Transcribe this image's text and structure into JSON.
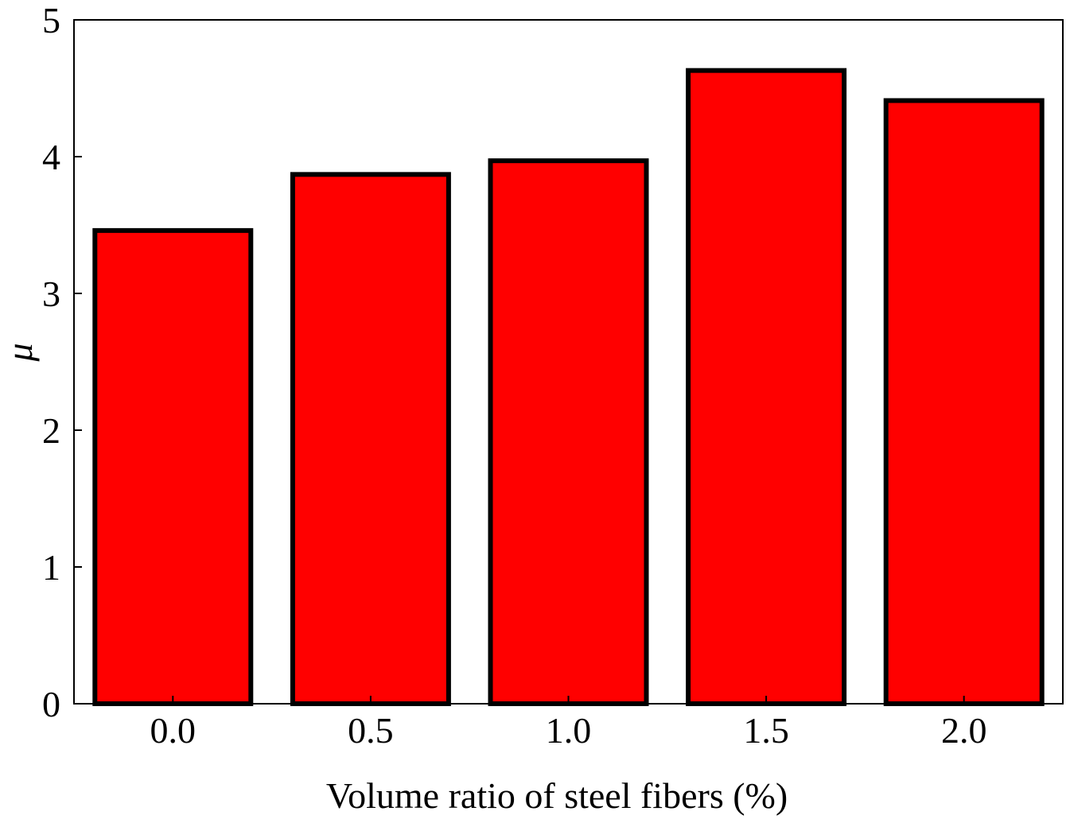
{
  "chart_data": {
    "type": "bar",
    "title": "",
    "xlabel": "Volume ratio of steel fibers (%)",
    "ylabel": "μ",
    "categories": [
      "0.0",
      "0.5",
      "1.0",
      "1.5",
      "2.0"
    ],
    "values": [
      3.46,
      3.87,
      3.97,
      4.63,
      4.41
    ],
    "ylim": [
      0,
      5
    ],
    "yticks": [
      "0",
      "1",
      "2",
      "3",
      "4",
      "5"
    ],
    "grid": false,
    "bar_color": "#ff0000",
    "bar_edge_color": "#000000"
  }
}
